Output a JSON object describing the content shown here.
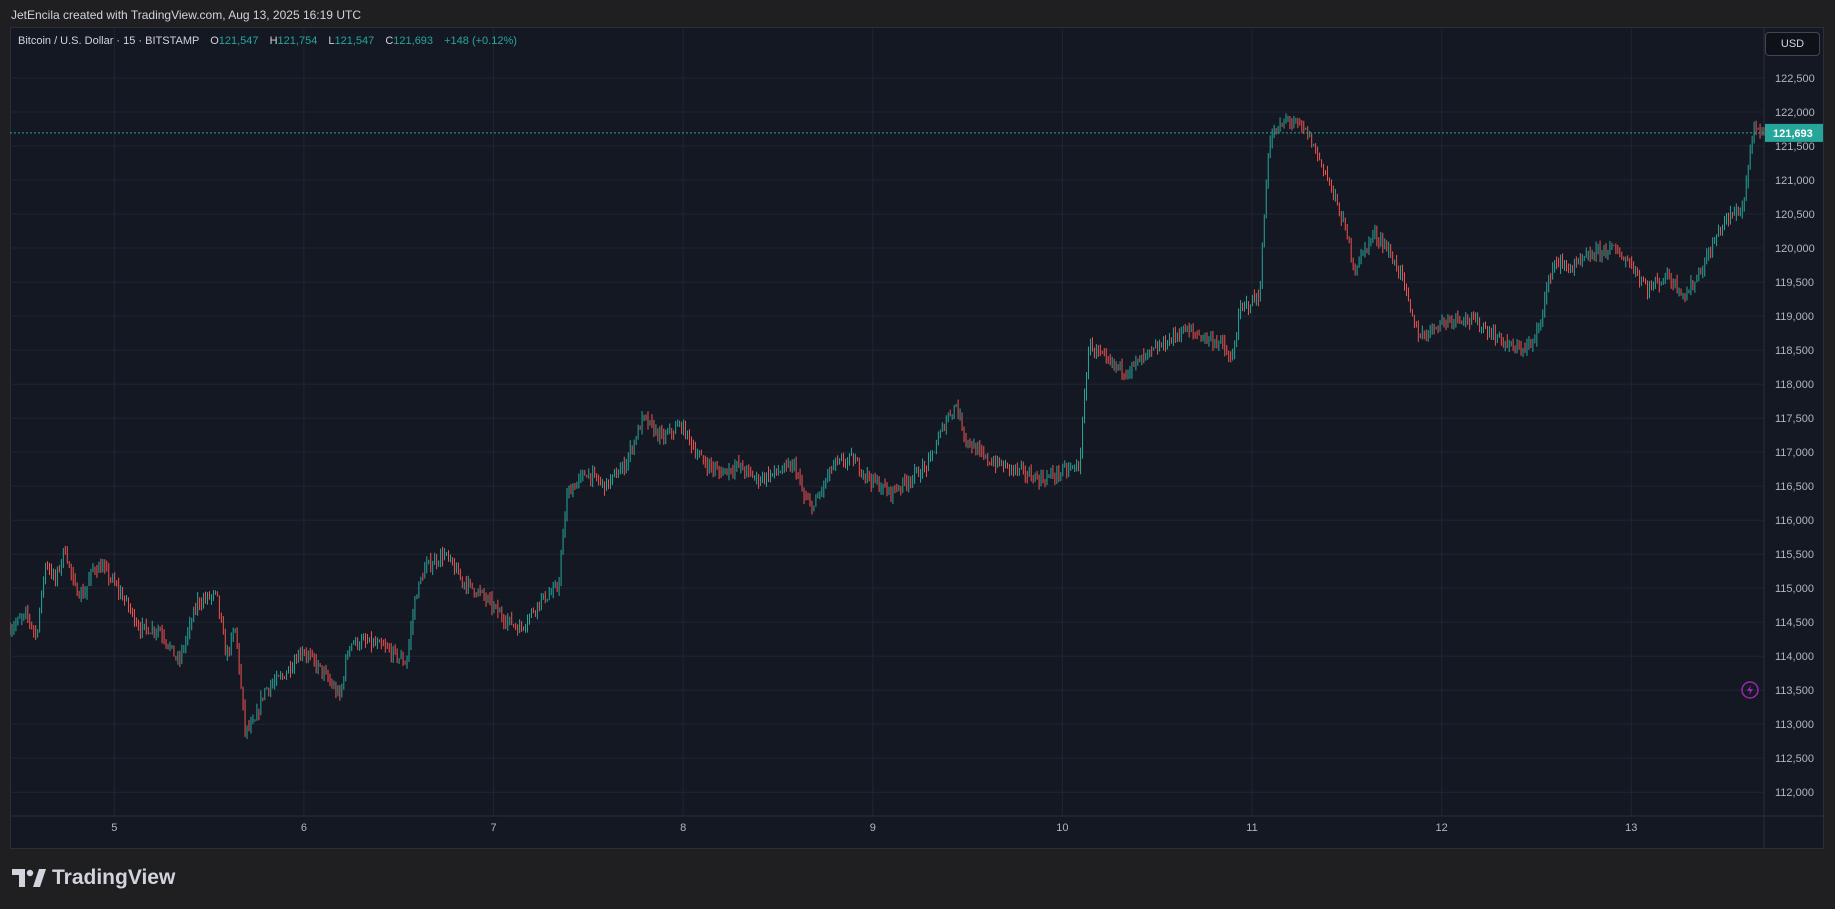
{
  "header": {
    "attribution": "JetEncila created with TradingView.com, Aug 13, 2025 16:19 UTC"
  },
  "legend": {
    "symbol": "Bitcoin / U.S. Dollar · 15 · BITSTAMP",
    "open_label": "O",
    "open": "121,547",
    "high_label": "H",
    "high": "121,754",
    "low_label": "L",
    "low": "121,547",
    "close_label": "C",
    "close": "121,693",
    "change": "+148 (+0.12%)"
  },
  "currency_button": "USD",
  "last_price_label": "121,693",
  "footer": {
    "brand": "TradingView"
  },
  "colors": {
    "up": "#26a69a",
    "down": "#ef5350",
    "background": "#141823",
    "grid": "#1f2533",
    "text": "#b2b5be"
  },
  "chart_data": {
    "type": "candlestick",
    "instrument": "Bitcoin / U.S. Dollar",
    "interval": "15",
    "exchange": "BITSTAMP",
    "currency": "USD",
    "ylim": [
      111650,
      123250
    ],
    "y_ticks": [
      112000,
      112500,
      113000,
      113500,
      114000,
      114500,
      115000,
      115500,
      116000,
      116500,
      117000,
      117500,
      118000,
      118500,
      119000,
      119500,
      120000,
      120500,
      121000,
      121500,
      122000,
      122500
    ],
    "x_ticks": [
      {
        "label": "5",
        "day": 5
      },
      {
        "label": "6",
        "day": 6
      },
      {
        "label": "7",
        "day": 7
      },
      {
        "label": "8",
        "day": 8
      },
      {
        "label": "9",
        "day": 9
      },
      {
        "label": "10",
        "day": 10
      },
      {
        "label": "11",
        "day": 11
      },
      {
        "label": "12",
        "day": 12
      },
      {
        "label": "13",
        "day": 13
      }
    ],
    "x_range_days": [
      4.45,
      13.7
    ],
    "last_price": 121693,
    "price_path": [
      [
        4.45,
        114400
      ],
      [
        4.55,
        114600
      ],
      [
        4.6,
        114300
      ],
      [
        4.65,
        115400
      ],
      [
        4.7,
        115100
      ],
      [
        4.75,
        115600
      ],
      [
        4.8,
        115000
      ],
      [
        4.85,
        114900
      ],
      [
        4.9,
        115300
      ],
      [
        4.95,
        115300
      ],
      [
        5.05,
        114900
      ],
      [
        5.15,
        114400
      ],
      [
        5.25,
        114400
      ],
      [
        5.35,
        113900
      ],
      [
        5.45,
        114800
      ],
      [
        5.55,
        114900
      ],
      [
        5.6,
        114000
      ],
      [
        5.65,
        114400
      ],
      [
        5.7,
        112900
      ],
      [
        5.75,
        113000
      ],
      [
        5.8,
        113500
      ],
      [
        5.9,
        113700
      ],
      [
        6.0,
        114100
      ],
      [
        6.1,
        113800
      ],
      [
        6.2,
        113400
      ],
      [
        6.25,
        114200
      ],
      [
        6.35,
        114200
      ],
      [
        6.45,
        114100
      ],
      [
        6.55,
        113900
      ],
      [
        6.6,
        114900
      ],
      [
        6.65,
        115300
      ],
      [
        6.75,
        115500
      ],
      [
        6.85,
        115100
      ],
      [
        6.95,
        114900
      ],
      [
        7.05,
        114600
      ],
      [
        7.15,
        114400
      ],
      [
        7.25,
        114800
      ],
      [
        7.35,
        115000
      ],
      [
        7.4,
        116400
      ],
      [
        7.5,
        116700
      ],
      [
        7.6,
        116500
      ],
      [
        7.7,
        116800
      ],
      [
        7.8,
        117500
      ],
      [
        7.9,
        117200
      ],
      [
        8.0,
        117400
      ],
      [
        8.1,
        116900
      ],
      [
        8.2,
        116700
      ],
      [
        8.3,
        116800
      ],
      [
        8.4,
        116600
      ],
      [
        8.5,
        116700
      ],
      [
        8.6,
        116800
      ],
      [
        8.65,
        116300
      ],
      [
        8.7,
        116200
      ],
      [
        8.8,
        116800
      ],
      [
        8.9,
        116900
      ],
      [
        9.0,
        116600
      ],
      [
        9.1,
        116400
      ],
      [
        9.2,
        116600
      ],
      [
        9.3,
        116800
      ],
      [
        9.4,
        117500
      ],
      [
        9.45,
        117700
      ],
      [
        9.5,
        117200
      ],
      [
        9.6,
        116900
      ],
      [
        9.7,
        116800
      ],
      [
        9.8,
        116700
      ],
      [
        9.9,
        116600
      ],
      [
        10.0,
        116700
      ],
      [
        10.1,
        116800
      ],
      [
        10.15,
        118600
      ],
      [
        10.25,
        118300
      ],
      [
        10.35,
        118200
      ],
      [
        10.45,
        118400
      ],
      [
        10.55,
        118600
      ],
      [
        10.65,
        118800
      ],
      [
        10.75,
        118700
      ],
      [
        10.85,
        118600
      ],
      [
        10.9,
        118300
      ],
      [
        10.95,
        119100
      ],
      [
        11.0,
        119200
      ],
      [
        11.05,
        119300
      ],
      [
        11.1,
        121600
      ],
      [
        11.2,
        121900
      ],
      [
        11.3,
        121700
      ],
      [
        11.4,
        121100
      ],
      [
        11.5,
        120300
      ],
      [
        11.55,
        119700
      ],
      [
        11.65,
        120200
      ],
      [
        11.7,
        120100
      ],
      [
        11.8,
        119600
      ],
      [
        11.85,
        119000
      ],
      [
        11.9,
        118700
      ],
      [
        12.0,
        118900
      ],
      [
        12.1,
        119000
      ],
      [
        12.2,
        118900
      ],
      [
        12.3,
        118700
      ],
      [
        12.4,
        118500
      ],
      [
        12.5,
        118600
      ],
      [
        12.55,
        119200
      ],
      [
        12.6,
        119800
      ],
      [
        12.7,
        119700
      ],
      [
        12.8,
        119900
      ],
      [
        12.9,
        120000
      ],
      [
        13.0,
        119800
      ],
      [
        13.1,
        119400
      ],
      [
        13.2,
        119600
      ],
      [
        13.3,
        119300
      ],
      [
        13.4,
        119800
      ],
      [
        13.5,
        120400
      ],
      [
        13.55,
        120500
      ],
      [
        13.6,
        120600
      ],
      [
        13.65,
        121700
      ],
      [
        13.7,
        121693
      ]
    ]
  }
}
